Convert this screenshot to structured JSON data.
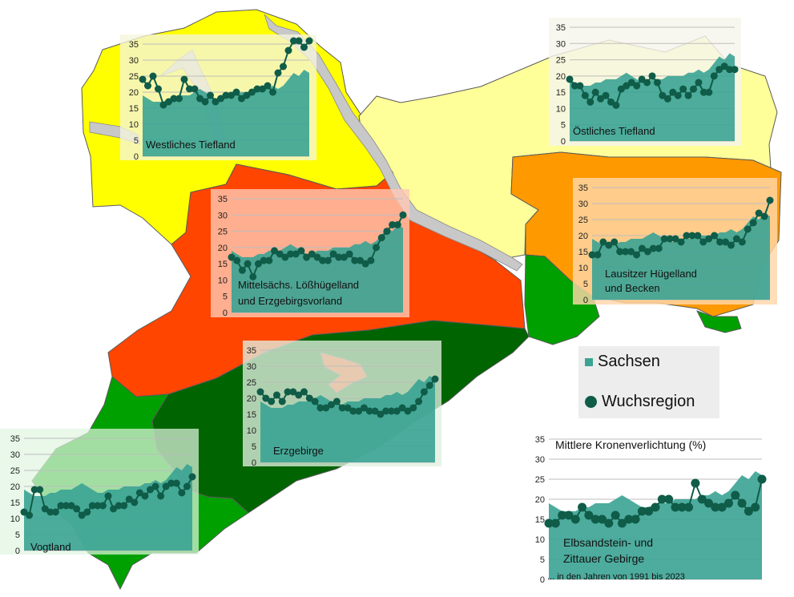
{
  "legend": {
    "sachsen_label": "Sachsen",
    "region_label": "Wuchsregion",
    "sachsen_color": "#3aa394",
    "region_color": "#0f5c48"
  },
  "region_colors": {
    "westliches_tiefland": "#ffff00",
    "oestliches_tiefland": "#ffff99",
    "mittelsachsen": "#ff4500",
    "lausitz": "#ff9900",
    "erzgebirge": "#006400",
    "vogtland": "#00a000",
    "elbsandstein": "#00a000",
    "river": "#c8c8c8"
  },
  "chart_data": [
    {
      "type": "area",
      "region": "Westliches Tiefland",
      "title": "Westliches Tiefland",
      "ylim": [
        0,
        35
      ],
      "yticks": [
        "0",
        "5",
        "10",
        "15",
        "20",
        "25",
        "30",
        "35"
      ],
      "x_start": 1991,
      "x_end": 2023,
      "series": [
        {
          "values": [
            19,
            18,
            17,
            17,
            17,
            18,
            18,
            19,
            19,
            19,
            20,
            21,
            20,
            19,
            18,
            18,
            19,
            19,
            19,
            20,
            20,
            20,
            20,
            21,
            21,
            22,
            21,
            22,
            24,
            26,
            25,
            27,
            26
          ]
        },
        {
          "values": [
            24,
            22,
            25,
            21,
            16,
            17,
            18,
            18,
            24,
            21,
            21,
            18,
            17,
            19,
            17,
            18,
            19,
            19,
            20,
            18,
            19,
            20,
            21,
            21,
            22,
            20,
            26,
            28,
            33,
            36,
            36,
            34,
            36
          ]
        }
      ]
    },
    {
      "type": "area",
      "region": "Östliches Tiefland",
      "title": "Östliches Tiefland",
      "ylim": [
        0,
        35
      ],
      "yticks": [
        "0",
        "5",
        "10",
        "15",
        "20",
        "25",
        "30",
        "35"
      ],
      "x_start": 1991,
      "x_end": 2023,
      "series": [
        {
          "values": [
            19,
            18,
            17,
            17,
            17,
            18,
            18,
            19,
            19,
            19,
            20,
            21,
            20,
            19,
            18,
            18,
            19,
            19,
            19,
            20,
            20,
            20,
            20,
            21,
            21,
            22,
            21,
            22,
            24,
            26,
            25,
            27,
            26
          ]
        },
        {
          "values": [
            19,
            17,
            17,
            14,
            12,
            15,
            13,
            14,
            12,
            11,
            16,
            17,
            18,
            17,
            19,
            18,
            20,
            18,
            14,
            13,
            15,
            14,
            16,
            14,
            16,
            18,
            15,
            15,
            20,
            22,
            23,
            22,
            22
          ]
        }
      ]
    },
    {
      "type": "area",
      "region": "Mittelsächs. Lößhügelland und Erzgebirgsvorland",
      "title": "Mittelsächs. Lößhügelland",
      "subtitle": "und Erzgebirgsvorland",
      "ylim": [
        0,
        35
      ],
      "yticks": [
        "0",
        "5",
        "10",
        "15",
        "20",
        "25",
        "30",
        "35"
      ],
      "x_start": 1991,
      "x_end": 2023,
      "series": [
        {
          "values": [
            19,
            18,
            17,
            17,
            17,
            18,
            18,
            19,
            19,
            19,
            20,
            21,
            20,
            19,
            18,
            18,
            19,
            19,
            19,
            20,
            20,
            20,
            20,
            21,
            21,
            22,
            21,
            22,
            24,
            26,
            25,
            27,
            26
          ]
        },
        {
          "values": [
            17,
            16,
            13,
            15,
            11,
            15,
            16,
            16,
            19,
            18,
            17,
            18,
            18,
            19,
            17,
            18,
            17,
            16,
            16,
            18,
            17,
            17,
            18,
            16,
            16,
            15,
            16,
            20,
            23,
            25,
            27,
            27,
            30
          ]
        }
      ]
    },
    {
      "type": "area",
      "region": "Lausitzer Hügelland und Becken",
      "title": "Lausitzer Hügelland",
      "subtitle": "und Becken",
      "ylim": [
        0,
        35
      ],
      "yticks": [
        "0",
        "5",
        "10",
        "15",
        "20",
        "25",
        "30",
        "35"
      ],
      "x_start": 1991,
      "x_end": 2023,
      "series": [
        {
          "values": [
            19,
            18,
            17,
            17,
            17,
            18,
            18,
            19,
            19,
            19,
            20,
            21,
            20,
            19,
            18,
            18,
            19,
            19,
            19,
            20,
            20,
            20,
            20,
            21,
            21,
            22,
            21,
            22,
            24,
            26,
            25,
            27,
            26
          ]
        },
        {
          "values": [
            14,
            14,
            18,
            17,
            18,
            15,
            15,
            15,
            14,
            16,
            15,
            16,
            16,
            19,
            19,
            19,
            18,
            20,
            20,
            20,
            18,
            19,
            20,
            18,
            18,
            17,
            19,
            18,
            22,
            24,
            27,
            26,
            31
          ]
        }
      ]
    },
    {
      "type": "area",
      "region": "Erzgebirge",
      "title": "Erzgebirge",
      "ylim": [
        0,
        35
      ],
      "yticks": [
        "0",
        "5",
        "10",
        "15",
        "20",
        "25",
        "30",
        "35"
      ],
      "x_start": 1991,
      "x_end": 2023,
      "series": [
        {
          "values": [
            19,
            18,
            17,
            17,
            17,
            18,
            18,
            19,
            19,
            19,
            20,
            21,
            20,
            19,
            18,
            18,
            19,
            19,
            19,
            20,
            20,
            20,
            20,
            21,
            21,
            22,
            21,
            22,
            24,
            26,
            25,
            27,
            26
          ]
        },
        {
          "values": [
            22,
            20,
            19,
            21,
            19,
            22,
            22,
            21,
            22,
            20,
            19,
            17,
            17,
            18,
            19,
            17,
            17,
            16,
            16,
            17,
            16,
            16,
            15,
            16,
            16,
            16,
            17,
            16,
            17,
            19,
            22,
            24,
            26
          ]
        }
      ]
    },
    {
      "type": "area",
      "region": "Vogtland",
      "title": "Vogtland",
      "ylim": [
        0,
        35
      ],
      "yticks": [
        "0",
        "5",
        "10",
        "15",
        "20",
        "25",
        "30",
        "35"
      ],
      "x_start": 1991,
      "x_end": 2023,
      "series": [
        {
          "values": [
            19,
            18,
            17,
            17,
            17,
            18,
            18,
            19,
            19,
            19,
            20,
            21,
            20,
            19,
            18,
            18,
            19,
            19,
            19,
            20,
            20,
            20,
            20,
            21,
            21,
            22,
            21,
            22,
            24,
            26,
            25,
            27,
            26
          ]
        },
        {
          "values": [
            12,
            11,
            19,
            19,
            13,
            12,
            12,
            14,
            14,
            14,
            13,
            11,
            12,
            14,
            14,
            14,
            17,
            13,
            14,
            14,
            16,
            15,
            18,
            17,
            19,
            20,
            17,
            20,
            21,
            21,
            18,
            20,
            23
          ]
        }
      ]
    },
    {
      "type": "area",
      "region": "Elbsandstein- und Zittauer Gebirge",
      "title": "Mittlere Kronenverlichtung (%)",
      "caption_line1": "Elbsandstein- und",
      "caption_line2": "Zittauer Gebirge",
      "note": "... in den Jahren von 1991 bis 2023",
      "ylim": [
        0,
        35
      ],
      "yticks": [
        "0",
        "5",
        "10",
        "15",
        "20",
        "25",
        "30",
        "35"
      ],
      "x_start": 1991,
      "x_end": 2023,
      "series": [
        {
          "values": [
            19,
            18,
            17,
            17,
            17,
            18,
            18,
            19,
            19,
            19,
            20,
            21,
            20,
            19,
            18,
            18,
            19,
            19,
            19,
            20,
            20,
            20,
            20,
            21,
            21,
            22,
            21,
            22,
            24,
            26,
            25,
            27,
            26
          ]
        },
        {
          "values": [
            14,
            14,
            16,
            16,
            15,
            18,
            16,
            15,
            15,
            14,
            16,
            14,
            15,
            15,
            17,
            17,
            18,
            20,
            20,
            18,
            18,
            18,
            24,
            20,
            19,
            18,
            18,
            19,
            21,
            19,
            17,
            18,
            25
          ]
        }
      ]
    }
  ]
}
